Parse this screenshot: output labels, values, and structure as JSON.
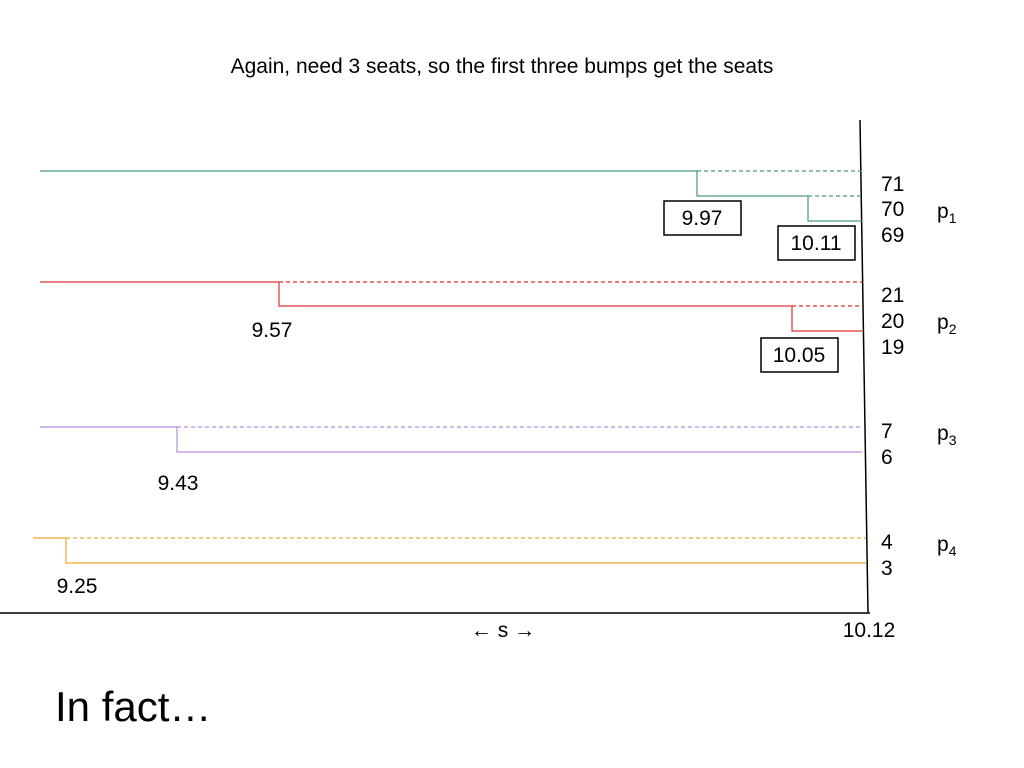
{
  "title": "Again, need 3 seats, so the first three bumps get the seats",
  "axis": {
    "label": "← s →",
    "end_value": "10.12"
  },
  "footer": "In fact…",
  "parties": [
    {
      "name": "p",
      "subscript": "1",
      "color": "#4a9a7a",
      "levels": [
        "71",
        "70",
        "69"
      ],
      "bumps": [
        {
          "value": "9.97",
          "boxed": true
        },
        {
          "value": "10.11",
          "boxed": true
        }
      ]
    },
    {
      "name": "p",
      "subscript": "2",
      "color": "#e03030",
      "levels": [
        "21",
        "20",
        "19"
      ],
      "bumps": [
        {
          "value": "9.57",
          "boxed": false
        },
        {
          "value": "10.05",
          "boxed": true
        }
      ]
    },
    {
      "name": "p",
      "subscript": "3",
      "color": "#b68ee0",
      "levels": [
        "7",
        "6"
      ],
      "bumps": [
        {
          "value": "9.43",
          "boxed": false
        }
      ]
    },
    {
      "name": "p",
      "subscript": "4",
      "color": "#f0a830",
      "levels": [
        "4",
        "3"
      ],
      "bumps": [
        {
          "value": "9.25",
          "boxed": false
        }
      ]
    }
  ]
}
